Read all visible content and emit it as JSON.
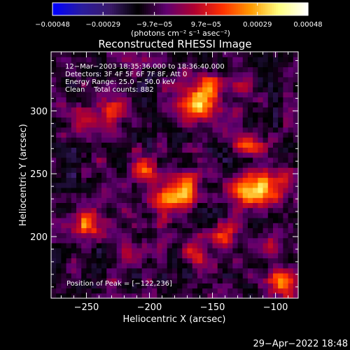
{
  "chart_data": {
    "type": "heatmap",
    "title": "Reconstructed RHESSI Image",
    "xlabel": "Heliocentric X (arcsec)",
    "ylabel": "Heliocentric Y (arcsec)",
    "xlim": [
      -278,
      -82
    ],
    "ylim": [
      151,
      347
    ],
    "xticks": [
      -250,
      -200,
      -150,
      -100
    ],
    "xtick_labels": [
      "−250",
      "−200",
      "−150",
      "−100"
    ],
    "yticks": [
      200,
      250,
      300
    ],
    "ytick_labels": [
      "200",
      "250",
      "300"
    ],
    "colorbar": {
      "range": [
        -0.00048,
        0.00048
      ],
      "ticks": [
        -0.00048,
        -0.00029,
        -9.7e-05,
        9.7e-05,
        0.00029,
        0.00048
      ],
      "tick_labels": [
        "−0.00048",
        "−0.00029",
        "−9.7e−05",
        "9.7e−05",
        "0.00029",
        "0.00048"
      ],
      "unit_label": "(photons cm⁻² s⁻¹ asec⁻²)"
    },
    "annotations": [
      "12−Mar−2003 18:35:36.000 to 18:36:40.000",
      "Detectors: 3F 4F 5F 6F 7F 8F, Att 0",
      "Energy Range: 25.0 − 50.0 keV",
      "Clean    Total counts: 882"
    ],
    "peak_label": "Position of Peak = [−122,236]",
    "peak": {
      "x": -122,
      "y": 236
    },
    "sources": [
      {
        "x": -165,
        "y": 305,
        "value": 0.00042,
        "sx": 10,
        "sy": 9
      },
      {
        "x": -152,
        "y": 322,
        "value": 0.0003,
        "sx": 8,
        "sy": 7
      },
      {
        "x": -230,
        "y": 300,
        "value": 0.00025,
        "sx": 10,
        "sy": 9
      },
      {
        "x": -205,
        "y": 255,
        "value": 0.0003,
        "sx": 9,
        "sy": 8
      },
      {
        "x": -185,
        "y": 230,
        "value": 0.00038,
        "sx": 10,
        "sy": 10
      },
      {
        "x": -170,
        "y": 240,
        "value": 0.0003,
        "sx": 8,
        "sy": 8
      },
      {
        "x": -122,
        "y": 236,
        "value": 0.00048,
        "sx": 9,
        "sy": 9
      },
      {
        "x": -100,
        "y": 240,
        "value": 0.0003,
        "sx": 9,
        "sy": 8
      },
      {
        "x": -120,
        "y": 275,
        "value": 0.00028,
        "sx": 8,
        "sy": 8
      },
      {
        "x": -250,
        "y": 210,
        "value": 0.0003,
        "sx": 9,
        "sy": 8
      },
      {
        "x": -140,
        "y": 200,
        "value": 0.00028,
        "sx": 8,
        "sy": 8
      },
      {
        "x": -165,
        "y": 185,
        "value": 0.00022,
        "sx": 8,
        "sy": 7
      },
      {
        "x": -95,
        "y": 165,
        "value": 0.0004,
        "sx": 8,
        "sy": 8
      },
      {
        "x": -105,
        "y": 195,
        "value": 0.00025,
        "sx": 7,
        "sy": 8
      },
      {
        "x": -230,
        "y": 160,
        "value": 0.00015,
        "sx": 8,
        "sy": 6
      },
      {
        "x": -255,
        "y": 290,
        "value": 0.00018,
        "sx": 8,
        "sy": 8
      },
      {
        "x": -130,
        "y": 320,
        "value": 0.00015,
        "sx": 8,
        "sy": 8
      },
      {
        "x": -210,
        "y": 190,
        "value": 0.00014,
        "sx": 8,
        "sy": 7
      }
    ],
    "pixel_size_arcsec": 4,
    "background_level": -0.00012
  },
  "colors": {
    "background": "#000000",
    "text": "#ffffff",
    "colormap": [
      "#0000ff",
      "#2a1c9e",
      "#3a1a6a",
      "#000000",
      "#600070",
      "#b00030",
      "#ff3000",
      "#ff9a00",
      "#ffff80",
      "#ffffff"
    ]
  },
  "footer": {
    "timestamp": "29−Apr−2022 18:48"
  }
}
